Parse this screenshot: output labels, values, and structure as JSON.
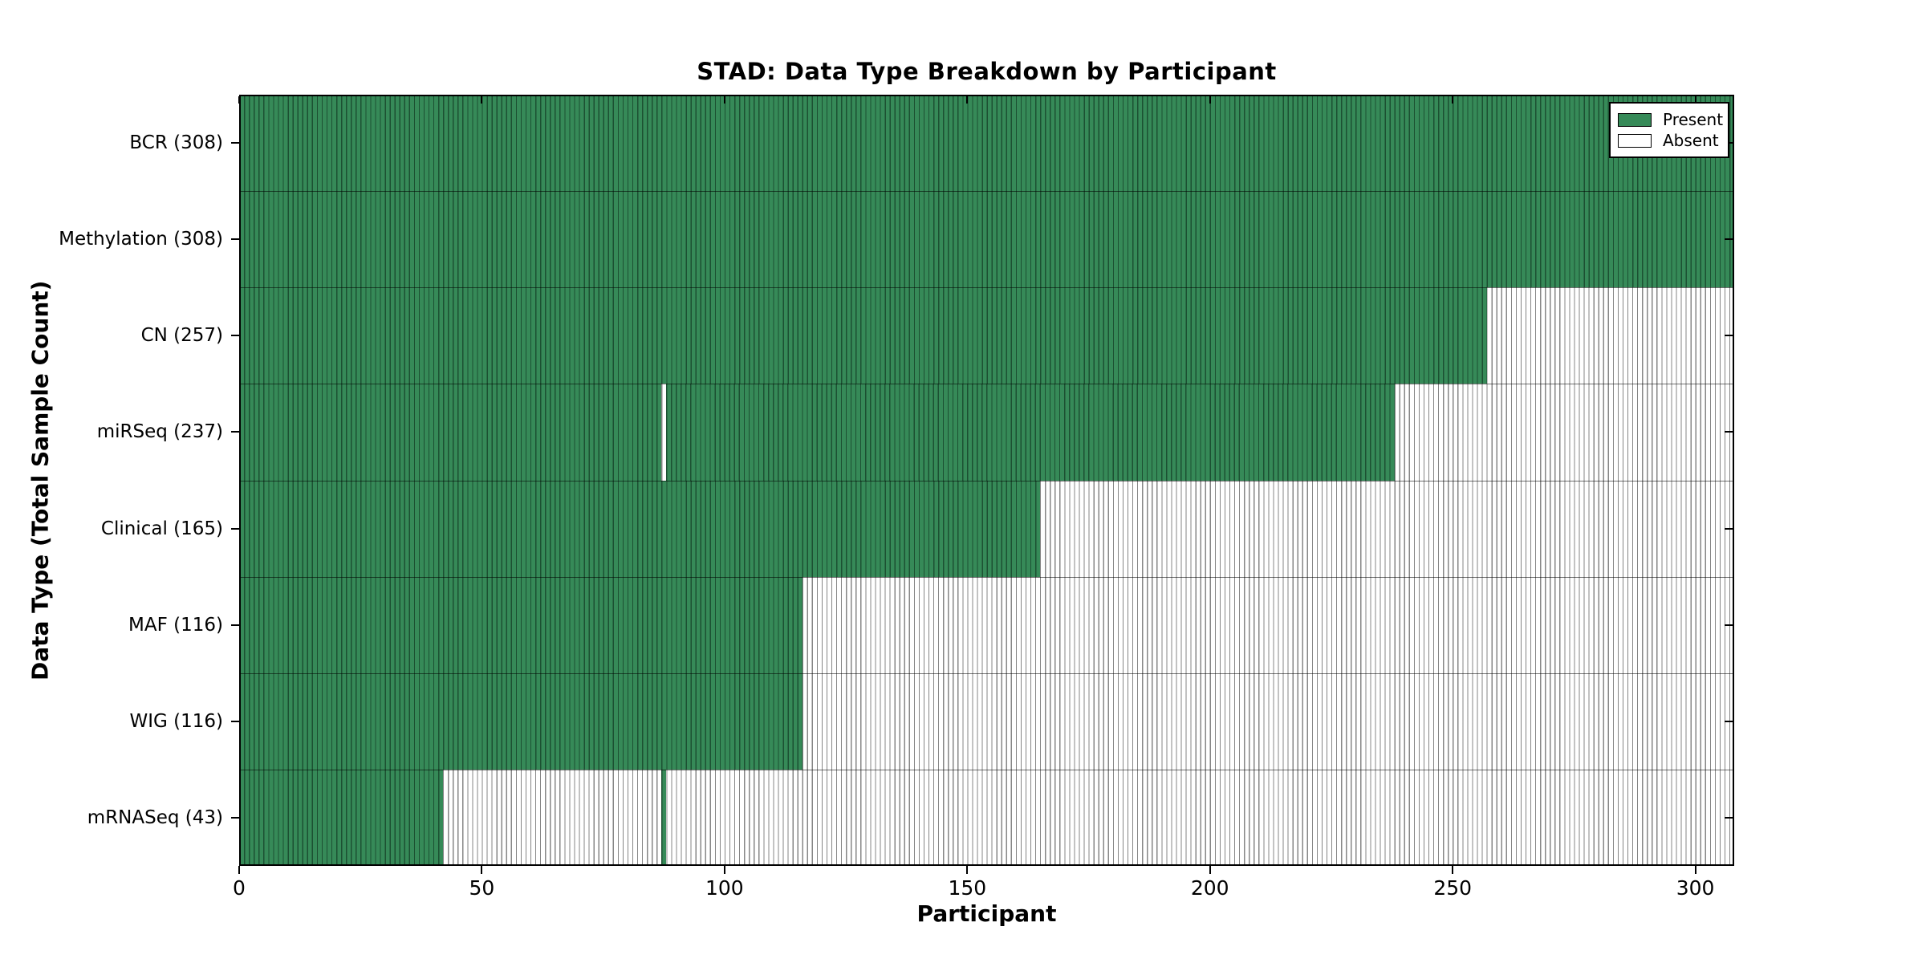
{
  "title": "STAD: Data Type Breakdown by Participant",
  "axes": {
    "x_label": "Participant",
    "y_label": "Data Type (Total Sample Count)"
  },
  "legend": {
    "entries": [
      {
        "label": "Present",
        "color": "#368a58"
      },
      {
        "label": "Absent",
        "color": "#ffffff"
      }
    ]
  },
  "chart_data": {
    "type": "heatmap",
    "title": "STAD: Data Type Breakdown by Participant",
    "xlabel": "Participant",
    "ylabel": "Data Type (Total Sample Count)",
    "xlim": [
      0,
      308
    ],
    "x_ticks": [
      0,
      50,
      100,
      150,
      200,
      250,
      300
    ],
    "legend_position": "upper right",
    "grid": false,
    "colors": {
      "present": "#368a58",
      "absent": "#ffffff"
    },
    "rows": [
      {
        "label": "BCR (308)",
        "name": "BCR",
        "total": 308,
        "present_ranges": [
          [
            0,
            308
          ]
        ]
      },
      {
        "label": "Methylation (308)",
        "name": "Methylation",
        "total": 308,
        "present_ranges": [
          [
            0,
            308
          ]
        ]
      },
      {
        "label": "CN (257)",
        "name": "CN",
        "total": 257,
        "present_ranges": [
          [
            0,
            257
          ]
        ]
      },
      {
        "label": "miRSeq (237)",
        "name": "miRSeq",
        "total": 237,
        "present_ranges": [
          [
            0,
            87
          ],
          [
            88,
            238
          ]
        ]
      },
      {
        "label": "Clinical (165)",
        "name": "Clinical",
        "total": 165,
        "present_ranges": [
          [
            0,
            165
          ]
        ]
      },
      {
        "label": "MAF (116)",
        "name": "MAF",
        "total": 116,
        "present_ranges": [
          [
            0,
            116
          ]
        ]
      },
      {
        "label": "WIG (116)",
        "name": "WIG",
        "total": 116,
        "present_ranges": [
          [
            0,
            116
          ]
        ]
      },
      {
        "label": "mRNASeq (43)",
        "name": "mRNASeq",
        "total": 43,
        "present_ranges": [
          [
            0,
            42
          ],
          [
            87,
            88
          ]
        ]
      }
    ]
  }
}
